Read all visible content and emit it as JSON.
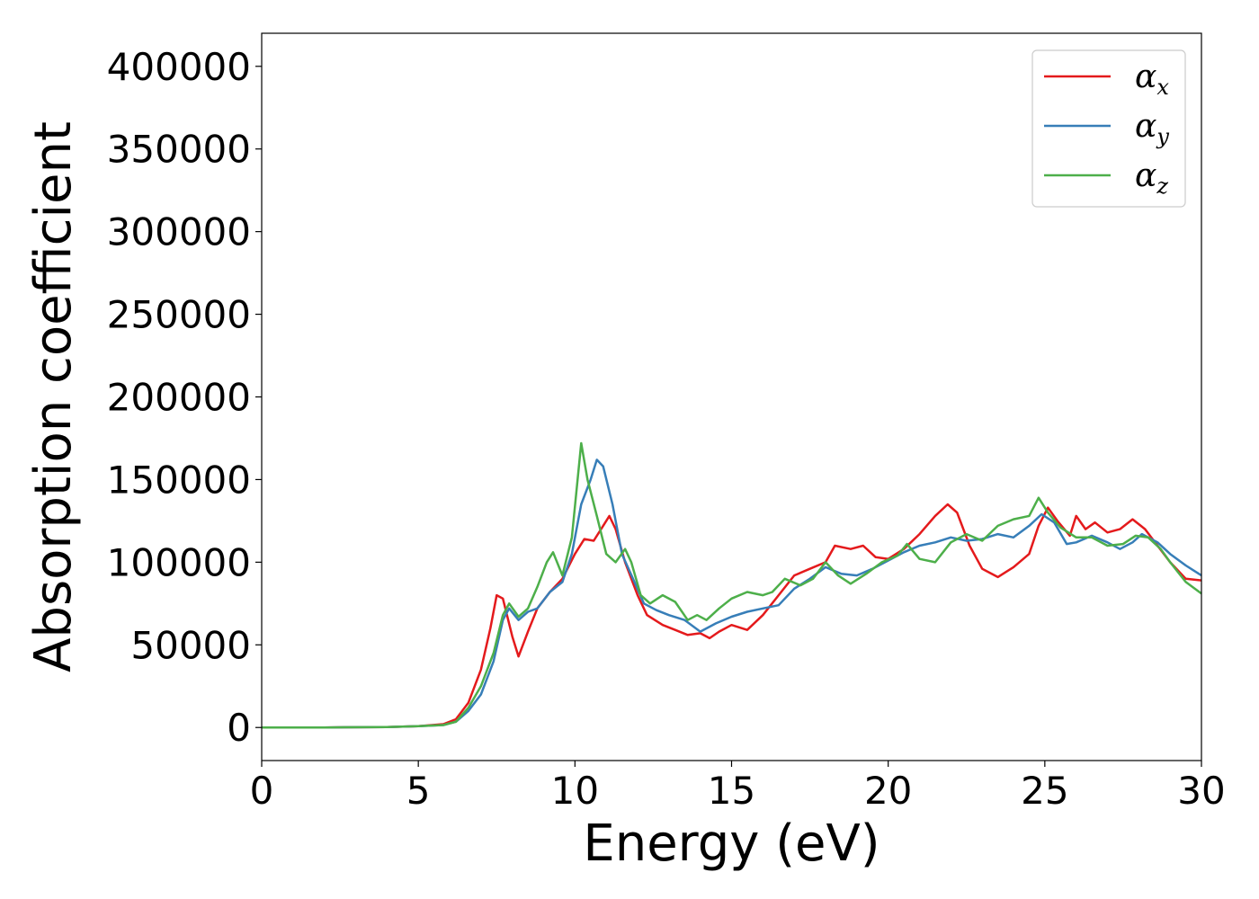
{
  "chart_data": {
    "type": "line",
    "title": "",
    "xlabel": "Energy (eV)",
    "ylabel": "Absorption coefficient",
    "xlim": [
      0,
      30
    ],
    "ylim": [
      -20000,
      420000
    ],
    "xticks": [
      0,
      5,
      10,
      15,
      20,
      25,
      30
    ],
    "yticks": [
      0,
      50000,
      100000,
      150000,
      200000,
      250000,
      300000,
      350000,
      400000
    ],
    "xtick_labels": [
      "0",
      "5",
      "10",
      "15",
      "20",
      "25",
      "30"
    ],
    "ytick_labels": [
      "0",
      "50000",
      "100000",
      "150000",
      "200000",
      "250000",
      "300000",
      "350000",
      "400000"
    ],
    "grid": false,
    "legend_position": "top-right",
    "series": [
      {
        "name": "α_x",
        "legend_symbol": "α",
        "legend_sub": "x",
        "color": "#e41a1c",
        "points": [
          [
            0,
            0
          ],
          [
            2,
            0
          ],
          [
            4,
            300
          ],
          [
            5,
            800
          ],
          [
            5.8,
            2000
          ],
          [
            6.2,
            5000
          ],
          [
            6.6,
            15000
          ],
          [
            7.0,
            35000
          ],
          [
            7.3,
            60000
          ],
          [
            7.5,
            80000
          ],
          [
            7.7,
            78000
          ],
          [
            8.0,
            55000
          ],
          [
            8.2,
            43000
          ],
          [
            8.5,
            58000
          ],
          [
            8.8,
            72000
          ],
          [
            9.2,
            82000
          ],
          [
            9.6,
            90000
          ],
          [
            10.0,
            105000
          ],
          [
            10.3,
            114000
          ],
          [
            10.6,
            113000
          ],
          [
            10.9,
            122000
          ],
          [
            11.1,
            128000
          ],
          [
            11.3,
            120000
          ],
          [
            11.6,
            100000
          ],
          [
            12.0,
            80000
          ],
          [
            12.3,
            68000
          ],
          [
            12.8,
            62000
          ],
          [
            13.2,
            59000
          ],
          [
            13.6,
            56000
          ],
          [
            14.0,
            57000
          ],
          [
            14.3,
            54000
          ],
          [
            14.6,
            58000
          ],
          [
            15.0,
            62000
          ],
          [
            15.5,
            59000
          ],
          [
            16.0,
            68000
          ],
          [
            16.5,
            80000
          ],
          [
            17.0,
            92000
          ],
          [
            17.5,
            96000
          ],
          [
            18.0,
            100000
          ],
          [
            18.3,
            110000
          ],
          [
            18.8,
            108000
          ],
          [
            19.2,
            110000
          ],
          [
            19.6,
            103000
          ],
          [
            20.0,
            102000
          ],
          [
            20.5,
            108000
          ],
          [
            21.0,
            117000
          ],
          [
            21.5,
            128000
          ],
          [
            21.9,
            135000
          ],
          [
            22.2,
            130000
          ],
          [
            22.6,
            110000
          ],
          [
            23.0,
            96000
          ],
          [
            23.5,
            91000
          ],
          [
            24.0,
            97000
          ],
          [
            24.5,
            105000
          ],
          [
            24.8,
            122000
          ],
          [
            25.1,
            133000
          ],
          [
            25.4,
            125000
          ],
          [
            25.8,
            116000
          ],
          [
            26.0,
            128000
          ],
          [
            26.3,
            120000
          ],
          [
            26.6,
            124000
          ],
          [
            27.0,
            118000
          ],
          [
            27.4,
            120000
          ],
          [
            27.8,
            126000
          ],
          [
            28.2,
            120000
          ],
          [
            28.6,
            110000
          ],
          [
            29.0,
            100000
          ],
          [
            29.5,
            90000
          ],
          [
            30.0,
            89000
          ]
        ]
      },
      {
        "name": "α_y",
        "legend_symbol": "α",
        "legend_sub": "y",
        "color": "#377eb8",
        "points": [
          [
            0,
            0
          ],
          [
            2,
            0
          ],
          [
            4,
            300
          ],
          [
            5,
            800
          ],
          [
            5.8,
            1500
          ],
          [
            6.2,
            3500
          ],
          [
            6.6,
            10000
          ],
          [
            7.0,
            20000
          ],
          [
            7.4,
            40000
          ],
          [
            7.7,
            65000
          ],
          [
            7.9,
            72000
          ],
          [
            8.2,
            65000
          ],
          [
            8.5,
            70000
          ],
          [
            8.8,
            72000
          ],
          [
            9.2,
            82000
          ],
          [
            9.6,
            88000
          ],
          [
            9.9,
            105000
          ],
          [
            10.2,
            135000
          ],
          [
            10.5,
            150000
          ],
          [
            10.7,
            162000
          ],
          [
            10.9,
            158000
          ],
          [
            11.2,
            135000
          ],
          [
            11.5,
            105000
          ],
          [
            11.9,
            88000
          ],
          [
            12.2,
            75000
          ],
          [
            12.6,
            71000
          ],
          [
            13.0,
            68000
          ],
          [
            13.5,
            65000
          ],
          [
            14.0,
            58000
          ],
          [
            14.5,
            63000
          ],
          [
            15.0,
            67000
          ],
          [
            15.5,
            70000
          ],
          [
            16.0,
            72000
          ],
          [
            16.5,
            74000
          ],
          [
            17.0,
            84000
          ],
          [
            17.5,
            90000
          ],
          [
            18.0,
            97000
          ],
          [
            18.5,
            93000
          ],
          [
            19.0,
            92000
          ],
          [
            19.5,
            96000
          ],
          [
            20.0,
            101000
          ],
          [
            20.5,
            106000
          ],
          [
            21.0,
            110000
          ],
          [
            21.5,
            112000
          ],
          [
            22.0,
            115000
          ],
          [
            22.5,
            113000
          ],
          [
            23.0,
            114000
          ],
          [
            23.5,
            117000
          ],
          [
            24.0,
            115000
          ],
          [
            24.5,
            122000
          ],
          [
            24.9,
            129000
          ],
          [
            25.3,
            124000
          ],
          [
            25.7,
            111000
          ],
          [
            26.0,
            112000
          ],
          [
            26.5,
            116000
          ],
          [
            27.0,
            112000
          ],
          [
            27.4,
            108000
          ],
          [
            27.8,
            112000
          ],
          [
            28.1,
            117000
          ],
          [
            28.6,
            112000
          ],
          [
            29.0,
            105000
          ],
          [
            29.5,
            98000
          ],
          [
            30.0,
            92000
          ]
        ]
      },
      {
        "name": "α_z",
        "legend_symbol": "α",
        "legend_sub": "z",
        "color": "#4daf4a",
        "points": [
          [
            0,
            0
          ],
          [
            2,
            0
          ],
          [
            4,
            300
          ],
          [
            5,
            800
          ],
          [
            5.8,
            1500
          ],
          [
            6.2,
            3500
          ],
          [
            6.6,
            12000
          ],
          [
            7.0,
            25000
          ],
          [
            7.4,
            45000
          ],
          [
            7.7,
            68000
          ],
          [
            7.9,
            75000
          ],
          [
            8.2,
            67000
          ],
          [
            8.5,
            72000
          ],
          [
            8.8,
            85000
          ],
          [
            9.1,
            100000
          ],
          [
            9.3,
            106000
          ],
          [
            9.6,
            92000
          ],
          [
            9.9,
            115000
          ],
          [
            10.2,
            172000
          ],
          [
            10.4,
            150000
          ],
          [
            10.7,
            128000
          ],
          [
            11.0,
            105000
          ],
          [
            11.3,
            100000
          ],
          [
            11.6,
            108000
          ],
          [
            11.8,
            100000
          ],
          [
            12.1,
            80000
          ],
          [
            12.4,
            75000
          ],
          [
            12.8,
            80000
          ],
          [
            13.2,
            76000
          ],
          [
            13.6,
            65000
          ],
          [
            13.9,
            68000
          ],
          [
            14.2,
            65000
          ],
          [
            14.6,
            72000
          ],
          [
            15.0,
            78000
          ],
          [
            15.5,
            82000
          ],
          [
            16.0,
            80000
          ],
          [
            16.3,
            82000
          ],
          [
            16.7,
            90000
          ],
          [
            17.2,
            86000
          ],
          [
            17.6,
            90000
          ],
          [
            18.0,
            100000
          ],
          [
            18.4,
            92000
          ],
          [
            18.8,
            87000
          ],
          [
            19.3,
            93000
          ],
          [
            19.8,
            100000
          ],
          [
            20.3,
            104000
          ],
          [
            20.6,
            111000
          ],
          [
            21.0,
            102000
          ],
          [
            21.5,
            100000
          ],
          [
            22.0,
            112000
          ],
          [
            22.5,
            117000
          ],
          [
            23.0,
            113000
          ],
          [
            23.5,
            122000
          ],
          [
            24.0,
            126000
          ],
          [
            24.5,
            128000
          ],
          [
            24.8,
            139000
          ],
          [
            25.1,
            130000
          ],
          [
            25.5,
            121000
          ],
          [
            26.0,
            115000
          ],
          [
            26.5,
            115000
          ],
          [
            27.0,
            110000
          ],
          [
            27.5,
            111000
          ],
          [
            27.9,
            116000
          ],
          [
            28.3,
            115000
          ],
          [
            28.7,
            108000
          ],
          [
            29.0,
            100000
          ],
          [
            29.5,
            88000
          ],
          [
            30.0,
            81000
          ]
        ]
      }
    ]
  }
}
